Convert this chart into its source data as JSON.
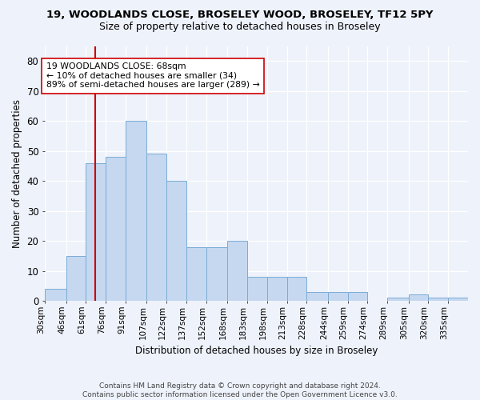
{
  "title1": "19, WOODLANDS CLOSE, BROSELEY WOOD, BROSELEY, TF12 5PY",
  "title2": "Size of property relative to detached houses in Broseley",
  "xlabel": "Distribution of detached houses by size in Broseley",
  "ylabel": "Number of detached properties",
  "footnote1": "Contains HM Land Registry data © Crown copyright and database right 2024.",
  "footnote2": "Contains public sector information licensed under the Open Government Licence v3.0.",
  "annotation_line1": "19 WOODLANDS CLOSE: 68sqm",
  "annotation_line2": "← 10% of detached houses are smaller (34)",
  "annotation_line3": "89% of semi-detached houses are larger (289) →",
  "bar_color": "#c5d8f0",
  "bar_edge_color": "#7aacd6",
  "ref_line_color": "#cc0000",
  "ref_line_x": 68,
  "bins": [
    30,
    46,
    61,
    76,
    91,
    107,
    122,
    137,
    152,
    168,
    183,
    198,
    213,
    228,
    244,
    259,
    274,
    289,
    305,
    320,
    335,
    350
  ],
  "bin_labels": [
    "30sqm",
    "46sqm",
    "61sqm",
    "76sqm",
    "91sqm",
    "107sqm",
    "122sqm",
    "137sqm",
    "152sqm",
    "168sqm",
    "183sqm",
    "198sqm",
    "213sqm",
    "228sqm",
    "244sqm",
    "259sqm",
    "274sqm",
    "289sqm",
    "305sqm",
    "320sqm",
    "335sqm"
  ],
  "values": [
    4,
    15,
    46,
    48,
    60,
    49,
    40,
    18,
    18,
    20,
    8,
    8,
    8,
    3,
    3,
    3,
    0,
    1,
    2,
    1,
    1
  ],
  "ylim": [
    0,
    85
  ],
  "yticks": [
    0,
    10,
    20,
    30,
    40,
    50,
    60,
    70,
    80
  ],
  "bg_color": "#eef2fb",
  "axes_bg_color": "#eef2fb",
  "grid_color": "#ffffff",
  "title1_fontsize": 9.5,
  "title2_fontsize": 9.0,
  "ylabel_fontsize": 8.5,
  "xlabel_fontsize": 8.5,
  "footnote_fontsize": 6.5,
  "xtick_fontsize": 7.5,
  "ytick_fontsize": 8.5,
  "annot_fontsize": 7.8
}
